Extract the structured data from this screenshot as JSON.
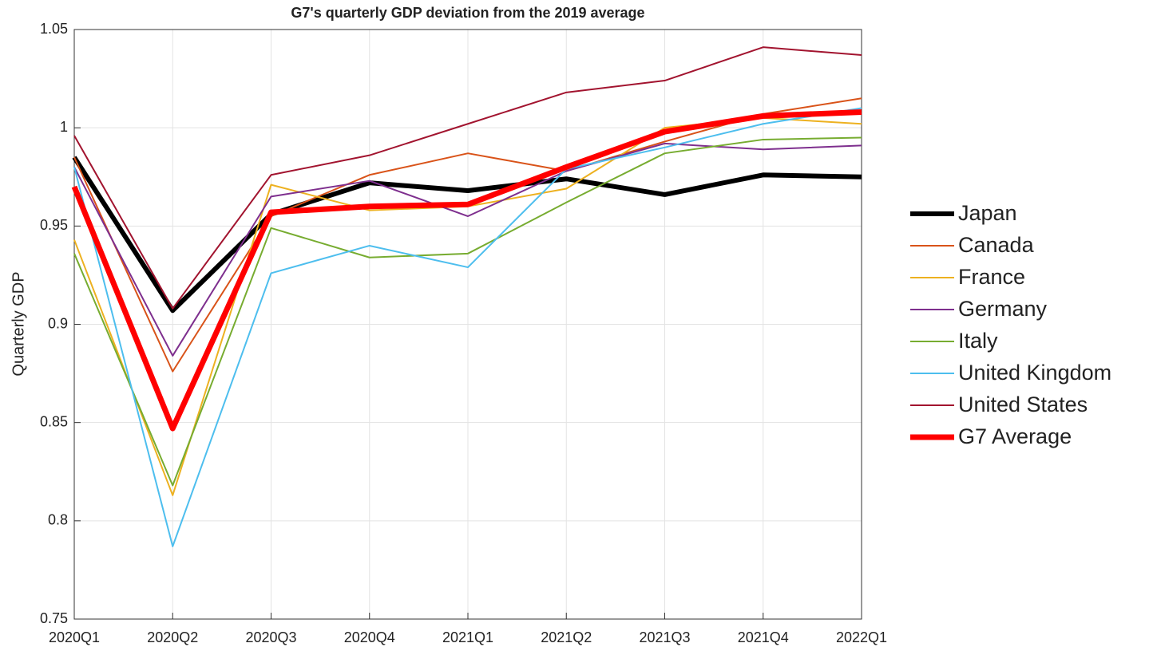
{
  "chart_data": {
    "type": "line",
    "title": "G7's quarterly GDP deviation from the 2019 average",
    "y_label": "Quarterly GDP",
    "categories": [
      "2020Q1",
      "2020Q2",
      "2020Q3",
      "2020Q4",
      "2021Q1",
      "2021Q2",
      "2021Q3",
      "2021Q4",
      "2022Q1"
    ],
    "ylim": [
      0.75,
      1.05
    ],
    "yticks": [
      0.75,
      0.8,
      0.85,
      0.9,
      0.95,
      1,
      1.05
    ],
    "grid": true,
    "legend": "outside-right",
    "series": [
      {
        "name": "Japan",
        "color": "#000000",
        "line_width": 6,
        "values": [
          0.985,
          0.907,
          0.956,
          0.972,
          0.968,
          0.974,
          0.966,
          0.976,
          0.975
        ]
      },
      {
        "name": "Canada",
        "color": "#d95319",
        "line_width": 2,
        "values": [
          0.985,
          0.876,
          0.955,
          0.976,
          0.987,
          0.978,
          0.993,
          1.007,
          1.015
        ]
      },
      {
        "name": "France",
        "color": "#edb120",
        "line_width": 2,
        "values": [
          0.943,
          0.813,
          0.971,
          0.958,
          0.96,
          0.969,
          1.0,
          1.005,
          1.002
        ]
      },
      {
        "name": "Germany",
        "color": "#7e2f8e",
        "line_width": 2,
        "values": [
          0.98,
          0.884,
          0.965,
          0.973,
          0.955,
          0.978,
          0.992,
          0.989,
          0.991
        ]
      },
      {
        "name": "Italy",
        "color": "#77ac30",
        "line_width": 2,
        "values": [
          0.936,
          0.818,
          0.949,
          0.934,
          0.936,
          0.962,
          0.987,
          0.994,
          0.995
        ]
      },
      {
        "name": "United Kingdom",
        "color": "#4dbeee",
        "line_width": 2,
        "values": [
          0.98,
          0.787,
          0.926,
          0.94,
          0.929,
          0.979,
          0.99,
          1.002,
          1.01
        ]
      },
      {
        "name": "United States",
        "color": "#a2142f",
        "line_width": 2,
        "values": [
          0.996,
          0.908,
          0.976,
          0.986,
          1.002,
          1.018,
          1.024,
          1.041,
          1.037
        ]
      },
      {
        "name": "G7 Average",
        "color": "#ff0000",
        "line_width": 7,
        "values": [
          0.97,
          0.847,
          0.957,
          0.96,
          0.961,
          0.98,
          0.998,
          1.006,
          1.008
        ]
      }
    ]
  }
}
